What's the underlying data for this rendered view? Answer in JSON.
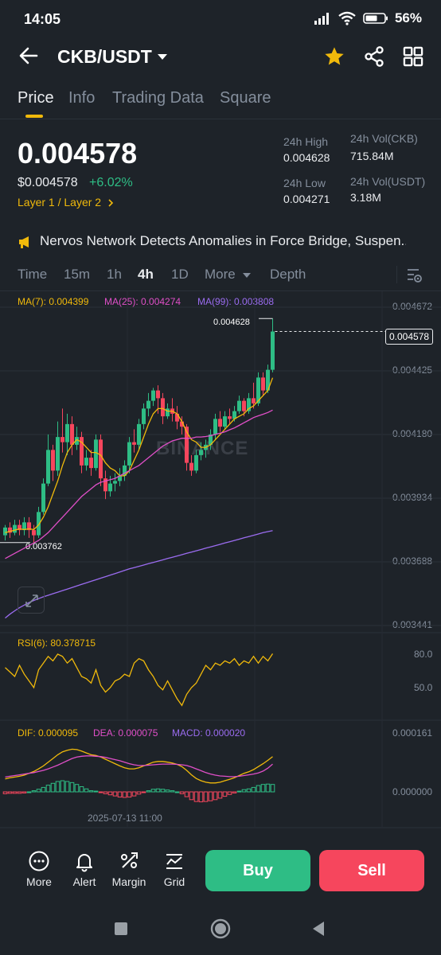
{
  "status_bar": {
    "time": "14:05",
    "battery": "56%"
  },
  "header": {
    "pair": "CKB/USDT"
  },
  "tabs": [
    {
      "label": "Price",
      "active": true
    },
    {
      "label": "Info",
      "active": false
    },
    {
      "label": "Trading Data",
      "active": false
    },
    {
      "label": "Square",
      "active": false
    }
  ],
  "ticker": {
    "last_price": "0.004578",
    "usd_price": "$0.004578",
    "change": "+6.02%",
    "tags": "Layer 1 / Layer 2",
    "high_label": "24h High",
    "high": "0.004628",
    "low_label": "24h Low",
    "low": "0.004271",
    "vol_base_label": "24h Vol(CKB)",
    "vol_base": "715.84M",
    "vol_quote_label": "24h Vol(USDT)",
    "vol_quote": "3.18M"
  },
  "news": {
    "headline": "Nervos Network Detects Anomalies in Force Bridge, Suspen..."
  },
  "intervals": [
    {
      "label": "Time",
      "active": false
    },
    {
      "label": "15m",
      "active": false
    },
    {
      "label": "1h",
      "active": false
    },
    {
      "label": "4h",
      "active": true
    },
    {
      "label": "1D",
      "active": false
    },
    {
      "label": "More",
      "active": false
    },
    {
      "label": "Depth",
      "active": false
    }
  ],
  "chart_data": {
    "type": "candlestick",
    "interval": "4h",
    "ma_labels": {
      "ma7": "MA(7): 0.004399",
      "ma25": "MA(25): 0.004274",
      "ma99": "MA(99): 0.003808"
    },
    "y_ticks": [
      "0.004672",
      "0.004425",
      "0.004180",
      "0.003934",
      "0.003688",
      "0.003441"
    ],
    "ylim": [
      0.003441,
      0.004672
    ],
    "current_price_tag": "0.004578",
    "high_marker": "0.004628",
    "low_marker": "0.003762",
    "watermark": "BINANCE",
    "colors": {
      "up": "#2ebd85",
      "down": "#f6465d",
      "ma7": "#f0b90b",
      "ma25": "#e04fc8",
      "ma99": "#9b6cf0"
    },
    "candles": [
      [
        0.00379,
        0.00382,
        0.00377,
        0.00383
      ],
      [
        0.00382,
        0.0038,
        0.00378,
        0.00384
      ],
      [
        0.0038,
        0.00383,
        0.00379,
        0.00385
      ],
      [
        0.00383,
        0.00381,
        0.00379,
        0.00385
      ],
      [
        0.00381,
        0.00384,
        0.00379,
        0.00386
      ],
      [
        0.00384,
        0.00381,
        0.00378,
        0.00386
      ],
      [
        0.00381,
        0.00379,
        0.003762,
        0.00383
      ],
      [
        0.00379,
        0.00388,
        0.00378,
        0.0039
      ],
      [
        0.00388,
        0.00399,
        0.00387,
        0.00401
      ],
      [
        0.00399,
        0.00412,
        0.00398,
        0.00418
      ],
      [
        0.00412,
        0.00404,
        0.004,
        0.00414
      ],
      [
        0.00404,
        0.00417,
        0.00402,
        0.00423
      ],
      [
        0.00417,
        0.00415,
        0.00411,
        0.00428
      ],
      [
        0.00415,
        0.00422,
        0.0041,
        0.00426
      ],
      [
        0.00422,
        0.00414,
        0.0041,
        0.00425
      ],
      [
        0.00414,
        0.00417,
        0.00412,
        0.00421
      ],
      [
        0.00417,
        0.00406,
        0.00403,
        0.00419
      ],
      [
        0.00406,
        0.00409,
        0.00404,
        0.00412
      ],
      [
        0.00409,
        0.00405,
        0.00402,
        0.00412
      ],
      [
        0.00405,
        0.00416,
        0.00404,
        0.00418
      ],
      [
        0.00416,
        0.00401,
        0.00398,
        0.00418
      ],
      [
        0.00401,
        0.00396,
        0.00393,
        0.00404
      ],
      [
        0.00396,
        0.00399,
        0.00394,
        0.00402
      ],
      [
        0.00399,
        0.004,
        0.00396,
        0.00403
      ],
      [
        0.004,
        0.00402,
        0.00398,
        0.00405
      ],
      [
        0.00402,
        0.00406,
        0.004,
        0.00408
      ],
      [
        0.00406,
        0.00415,
        0.00403,
        0.00417
      ],
      [
        0.00415,
        0.00414,
        0.00411,
        0.0042
      ],
      [
        0.00414,
        0.00422,
        0.00412,
        0.00424
      ],
      [
        0.00422,
        0.00428,
        0.0042,
        0.0043
      ],
      [
        0.00428,
        0.00431,
        0.00425,
        0.00434
      ],
      [
        0.00431,
        0.00435,
        0.00429,
        0.00436
      ],
      [
        0.00435,
        0.00432,
        0.00426,
        0.00437
      ],
      [
        0.00432,
        0.00425,
        0.00422,
        0.00434
      ],
      [
        0.00425,
        0.00428,
        0.00424,
        0.0043
      ],
      [
        0.00428,
        0.00426,
        0.00423,
        0.00432
      ],
      [
        0.00426,
        0.00423,
        0.0042,
        0.00429
      ],
      [
        0.00423,
        0.00421,
        0.00418,
        0.00425
      ],
      [
        0.00421,
        0.00407,
        0.00404,
        0.00422
      ],
      [
        0.00407,
        0.00404,
        0.00402,
        0.0041
      ],
      [
        0.00404,
        0.0041,
        0.00403,
        0.00412
      ],
      [
        0.0041,
        0.00412,
        0.00408,
        0.00415
      ],
      [
        0.00412,
        0.00414,
        0.00409,
        0.00416
      ],
      [
        0.00414,
        0.00418,
        0.00412,
        0.0042
      ],
      [
        0.00418,
        0.00424,
        0.00416,
        0.00426
      ],
      [
        0.00424,
        0.00421,
        0.00419,
        0.00427
      ],
      [
        0.00421,
        0.00425,
        0.0042,
        0.00427
      ],
      [
        0.00425,
        0.00424,
        0.00422,
        0.00428
      ],
      [
        0.00424,
        0.00427,
        0.00423,
        0.00429
      ],
      [
        0.00427,
        0.00431,
        0.00426,
        0.00433
      ],
      [
        0.00431,
        0.00427,
        0.00425,
        0.00432
      ],
      [
        0.00427,
        0.00432,
        0.00426,
        0.00434
      ],
      [
        0.00432,
        0.0043,
        0.00428,
        0.00438
      ],
      [
        0.0043,
        0.0044,
        0.00429,
        0.00442
      ],
      [
        0.0044,
        0.00435,
        0.00433,
        0.00442
      ],
      [
        0.00435,
        0.00443,
        0.00434,
        0.00445
      ],
      [
        0.00443,
        0.004578,
        0.00442,
        0.004628
      ]
    ],
    "ma7": [
      0.0038,
      0.003805,
      0.00381,
      0.003815,
      0.003812,
      0.003815,
      0.003812,
      0.00383,
      0.00386,
      0.0039,
      0.00395,
      0.004,
      0.00406,
      0.00411,
      0.00414,
      0.00416,
      0.00415,
      0.00413,
      0.00411,
      0.00411,
      0.0041,
      0.00407,
      0.00405,
      0.00404,
      0.00402,
      0.00402,
      0.00404,
      0.00408,
      0.00412,
      0.00417,
      0.00422,
      0.00426,
      0.00428,
      0.00428,
      0.00427,
      0.00427,
      0.00426,
      0.00423,
      0.00419,
      0.00416,
      0.00415,
      0.00413,
      0.00413,
      0.00414,
      0.00416,
      0.00418,
      0.0042,
      0.00422,
      0.00424,
      0.00425,
      0.00426,
      0.00428,
      0.00429,
      0.00431,
      0.00433,
      0.00435,
      0.004399
    ],
    "ma25": [
      0.0037,
      0.00371,
      0.00372,
      0.00373,
      0.00374,
      0.00375,
      0.00376,
      0.00377,
      0.003785,
      0.0038,
      0.00382,
      0.00384,
      0.00386,
      0.00388,
      0.0039,
      0.00392,
      0.00394,
      0.003955,
      0.00397,
      0.003985,
      0.003995,
      0.004,
      0.004005,
      0.00401,
      0.00402,
      0.00403,
      0.00404,
      0.00405,
      0.00406,
      0.004075,
      0.00409,
      0.004105,
      0.00412,
      0.004135,
      0.004145,
      0.004155,
      0.00416,
      0.004165,
      0.004165,
      0.004165,
      0.00417,
      0.00417,
      0.004172,
      0.004175,
      0.00418,
      0.004185,
      0.00419,
      0.004198,
      0.004205,
      0.004215,
      0.004225,
      0.004235,
      0.004245,
      0.004252,
      0.004258,
      0.004265,
      0.004274
    ],
    "ma99": [
      0.00347,
      0.003485,
      0.003498,
      0.00351,
      0.00352,
      0.00353,
      0.003538,
      0.003545,
      0.003552,
      0.003558,
      0.003564,
      0.00357,
      0.003576,
      0.003582,
      0.003588,
      0.003594,
      0.0036,
      0.003606,
      0.003612,
      0.003618,
      0.003624,
      0.00363,
      0.003636,
      0.003642,
      0.003648,
      0.003654,
      0.00366,
      0.003665,
      0.00367,
      0.003675,
      0.00368,
      0.003685,
      0.00369,
      0.003695,
      0.0037,
      0.003705,
      0.00371,
      0.003715,
      0.00372,
      0.003725,
      0.00373,
      0.003735,
      0.00374,
      0.003745,
      0.00375,
      0.003755,
      0.00376,
      0.003765,
      0.00377,
      0.003775,
      0.00378,
      0.003785,
      0.00379,
      0.003795,
      0.0038,
      0.003804,
      0.003808
    ],
    "rsi": {
      "label": "RSI(6): 80.378715",
      "ticks": [
        "80.0",
        "50.0"
      ],
      "values": [
        68,
        64,
        60,
        70,
        62,
        56,
        50,
        66,
        72,
        78,
        74,
        80,
        78,
        72,
        76,
        68,
        60,
        58,
        54,
        66,
        52,
        46,
        50,
        56,
        58,
        62,
        60,
        72,
        76,
        74,
        66,
        60,
        52,
        48,
        56,
        48,
        40,
        34,
        44,
        50,
        54,
        62,
        70,
        66,
        72,
        70,
        74,
        72,
        76,
        70,
        74,
        72,
        78,
        72,
        78,
        74,
        80.4
      ]
    },
    "macd": {
      "label_dif": "DIF: 0.000095",
      "label_dea": "DEA: 0.000075",
      "label_macd": "MACD: 0.000020",
      "ticks": [
        "0.000161",
        "0.000000"
      ],
      "dif": [
        3.5e-05,
        3.8e-05,
        4e-05,
        4.2e-05,
        4.5e-05,
        5e-05,
        5.5e-05,
        6.2e-05,
        7e-05,
        8e-05,
        9e-05,
        0.0001,
        0.000108,
        0.000112,
        0.000115,
        0.000114,
        0.00011,
        0.000105,
        0.0001,
        9.8e-05,
        9.4e-05,
        8.8e-05,
        8.2e-05,
        7.6e-05,
        7e-05,
        6.5e-05,
        6.2e-05,
        6.2e-05,
        6.5e-05,
        7e-05,
        7.5e-05,
        8e-05,
        8.2e-05,
        8.2e-05,
        8e-05,
        7.8e-05,
        7.4e-05,
        6.8e-05,
        5.8e-05,
        4.6e-05,
        3.6e-05,
        3e-05,
        2.6e-05,
        2.4e-05,
        2.4e-05,
        2.6e-05,
        3e-05,
        3.4e-05,
        3.8e-05,
        4.4e-05,
        5e-05,
        5.4e-05,
        6e-05,
        6.8e-05,
        7.6e-05,
        8.5e-05,
        9.5e-05
      ],
      "dea": [
        4e-05,
        4.2e-05,
        4.4e-05,
        4.6e-05,
        4.8e-05,
        5e-05,
        5.2e-05,
        5.5e-05,
        5.8e-05,
        6.2e-05,
        6.7e-05,
        7.2e-05,
        7.8e-05,
        8.4e-05,
        9e-05,
        9.4e-05,
        9.6e-05,
        9.7e-05,
        9.7e-05,
        9.6e-05,
        9.5e-05,
        9.3e-05,
        9e-05,
        8.7e-05,
        8.4e-05,
        8e-05,
        7.6e-05,
        7.3e-05,
        7.1e-05,
        7.1e-05,
        7.2e-05,
        7.3e-05,
        7.4e-05,
        7.5e-05,
        7.5e-05,
        7.5e-05,
        7.4e-05,
        7.3e-05,
        7.1e-05,
        6.7e-05,
        6.2e-05,
        5.7e-05,
        5.2e-05,
        4.8e-05,
        4.5e-05,
        4.3e-05,
        4.2e-05,
        4.1e-05,
        4.1e-05,
        4.2e-05,
        4.4e-05,
        4.6e-05,
        4.8e-05,
        5.1e-05,
        5.6e-05,
        6.4e-05,
        7.5e-05
      ],
      "hist": [
        -5e-06,
        -4e-06,
        -4e-06,
        -4e-06,
        -3e-06,
        0.0,
        3e-06,
        7e-06,
        1.2e-05,
        1.8e-05,
        2.3e-05,
        2.8e-05,
        3e-05,
        2.8e-05,
        2.5e-05,
        2e-05,
        1.4e-05,
        8e-06,
        3e-06,
        2e-06,
        -1e-06,
        -5e-06,
        -8e-06,
        -1.1e-05,
        -1.4e-05,
        -1.5e-05,
        -1.4e-05,
        -1.1e-05,
        -6e-06,
        -1e-06,
        3e-06,
        7e-06,
        8e-06,
        7e-06,
        5e-06,
        3e-06,
        0.0,
        -5e-06,
        -1.3e-05,
        -2.1e-05,
        -2.6e-05,
        -2.7e-05,
        -2.6e-05,
        -2.4e-05,
        -2.1e-05,
        -1.7e-05,
        -1.2e-05,
        -7e-06,
        -3e-06,
        2e-06,
        6e-06,
        8e-06,
        1.2e-05,
        1.7e-05,
        2e-05,
        2.1e-05,
        2e-05
      ]
    },
    "x_label": "2025-07-13 11:00"
  },
  "bottom_bar": {
    "more": "More",
    "alert": "Alert",
    "margin": "Margin",
    "grid": "Grid",
    "buy": "Buy",
    "sell": "Sell",
    "buy_color": "#2ebd85",
    "sell_color": "#f6465d"
  }
}
